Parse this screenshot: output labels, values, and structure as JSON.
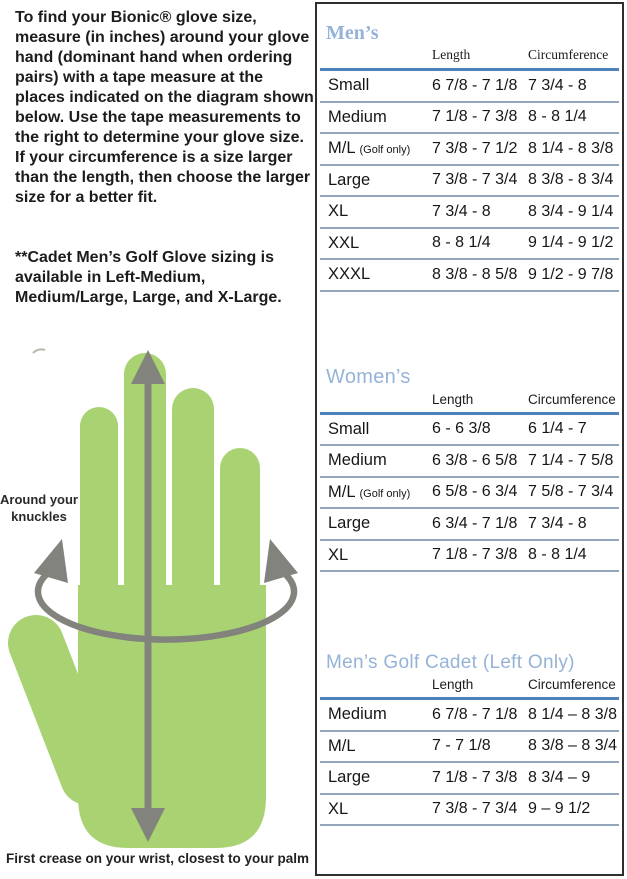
{
  "intro": {
    "paragraph1": "To find your Bionic® glove size, measure (in inches) around your glove hand (dominant hand when ordering pairs) with a tape measure at the places indicated on the diagram shown below. Use the tape measurements to the right to determine your glove size. If your circumference is a size larger than the length, then choose the larger size for a better fit.",
    "paragraph2": "**Cadet Men’s Golf Glove sizing is available in Left-Medium, Medium/Large, Large, and X-Large."
  },
  "diagram": {
    "knuckles_label": "Around your knuckles",
    "wrist_caption": "First crease on your wrist, closest to your palm",
    "hand_icon": "open-hand-with-length-arrow-and-knuckle-circumference-arrow"
  },
  "tables": [
    {
      "title": "Men’s",
      "columns": [
        "Length",
        "Circumference"
      ],
      "rows": [
        {
          "size": "Small",
          "note": "",
          "length": "6 7/8 - 7 1/8",
          "circ": "7 3/4 - 8"
        },
        {
          "size": "Medium",
          "note": "",
          "length": "7 1/8 - 7 3/8",
          "circ": "8 - 8 1/4"
        },
        {
          "size": "M/L",
          "note": "(Golf only)",
          "length": "7 3/8 - 7 1/2",
          "circ": "8 1/4 - 8 3/8"
        },
        {
          "size": "Large",
          "note": "",
          "length": "7 3/8 - 7 3/4",
          "circ": "8 3/8 - 8 3/4"
        },
        {
          "size": "XL",
          "note": "",
          "length": "7 3/4 - 8",
          "circ": "8 3/4 - 9 1/4"
        },
        {
          "size": "XXL",
          "note": "",
          "length": "8 - 8 1/4",
          "circ": "9 1/4 - 9 1/2"
        },
        {
          "size": "XXXL",
          "note": "",
          "length": "8 3/8 - 8 5/8",
          "circ": "9 1/2 - 9 7/8"
        }
      ]
    },
    {
      "title": "Women’s",
      "columns": [
        "Length",
        "Circumference"
      ],
      "rows": [
        {
          "size": "Small",
          "note": "",
          "length": "6 - 6 3/8",
          "circ": "6 1/4 - 7"
        },
        {
          "size": "Medium",
          "note": "",
          "length": "6 3/8 - 6 5/8",
          "circ": "7 1/4 - 7 5/8"
        },
        {
          "size": "M/L",
          "note": "(Golf only)",
          "length": "6 5/8 - 6 3/4",
          "circ": "7 5/8 - 7 3/4"
        },
        {
          "size": "Large",
          "note": "",
          "length": "6 3/4 - 7 1/8",
          "circ": "7 3/4 - 8"
        },
        {
          "size": "XL",
          "note": "",
          "length": "7 1/8 - 7 3/8",
          "circ": "8 - 8 1/4"
        }
      ]
    },
    {
      "title": "Men’s Golf Cadet (Left Only)",
      "columns": [
        "Length",
        "Circumference"
      ],
      "rows": [
        {
          "size": "Medium",
          "note": "",
          "length": "6 7/8 - 7 1/8",
          "circ": "8 1/4 – 8 3/8"
        },
        {
          "size": "M/L",
          "note": "",
          "length": "7 - 7 1/8",
          "circ": "8 3/8 – 8 3/4"
        },
        {
          "size": "Large",
          "note": "",
          "length": "7 1/8 - 7 3/8",
          "circ": "8 3/4 – 9"
        },
        {
          "size": "XL",
          "note": "",
          "length": "7 3/8 - 7 3/4",
          "circ": "9 – 9 1/2"
        }
      ]
    }
  ],
  "colors": {
    "title_blue": "#95b3d7",
    "rule_blue": "#4f81bd",
    "row_line": "#93a5ba",
    "panel_border": "#2e2e2e",
    "text_dark": "#1c1c1c",
    "hand_green": "#a9d373",
    "arrow_gray": "#82837c"
  }
}
